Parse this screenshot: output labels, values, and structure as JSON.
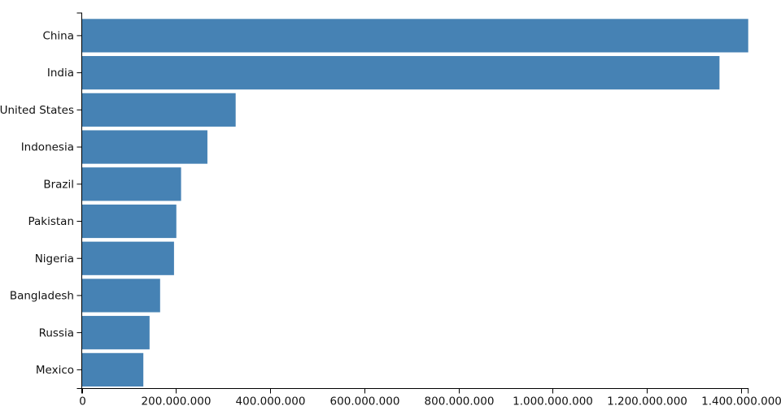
{
  "chart_data": {
    "type": "bar",
    "orientation": "horizontal",
    "title": "",
    "xlabel": "",
    "ylabel": "",
    "categories": [
      "China",
      "India",
      "United States",
      "Indonesia",
      "Brazil",
      "Pakistan",
      "Nigeria",
      "Bangladesh",
      "Russia",
      "Mexico"
    ],
    "values": [
      1415045928,
      1354051854,
      326766748,
      266794980,
      210867954,
      200813818,
      195875237,
      166368149,
      143964709,
      130759074
    ],
    "xlim": [
      0,
      1415045928
    ],
    "x_ticks": [
      0,
      200000000,
      400000000,
      600000000,
      800000000,
      1000000000,
      1200000000,
      1400000000
    ],
    "x_tick_labels": [
      "0",
      "200.000.000",
      "400.000.000",
      "600.000.000",
      "800.000.000",
      "1.000.000.000",
      "1.200.000.000",
      "1.400.000.000"
    ],
    "grid": false,
    "legend": false,
    "colors": {
      "bar": "#4682b4",
      "axis": "#000000",
      "tick_label": "#111111"
    }
  }
}
